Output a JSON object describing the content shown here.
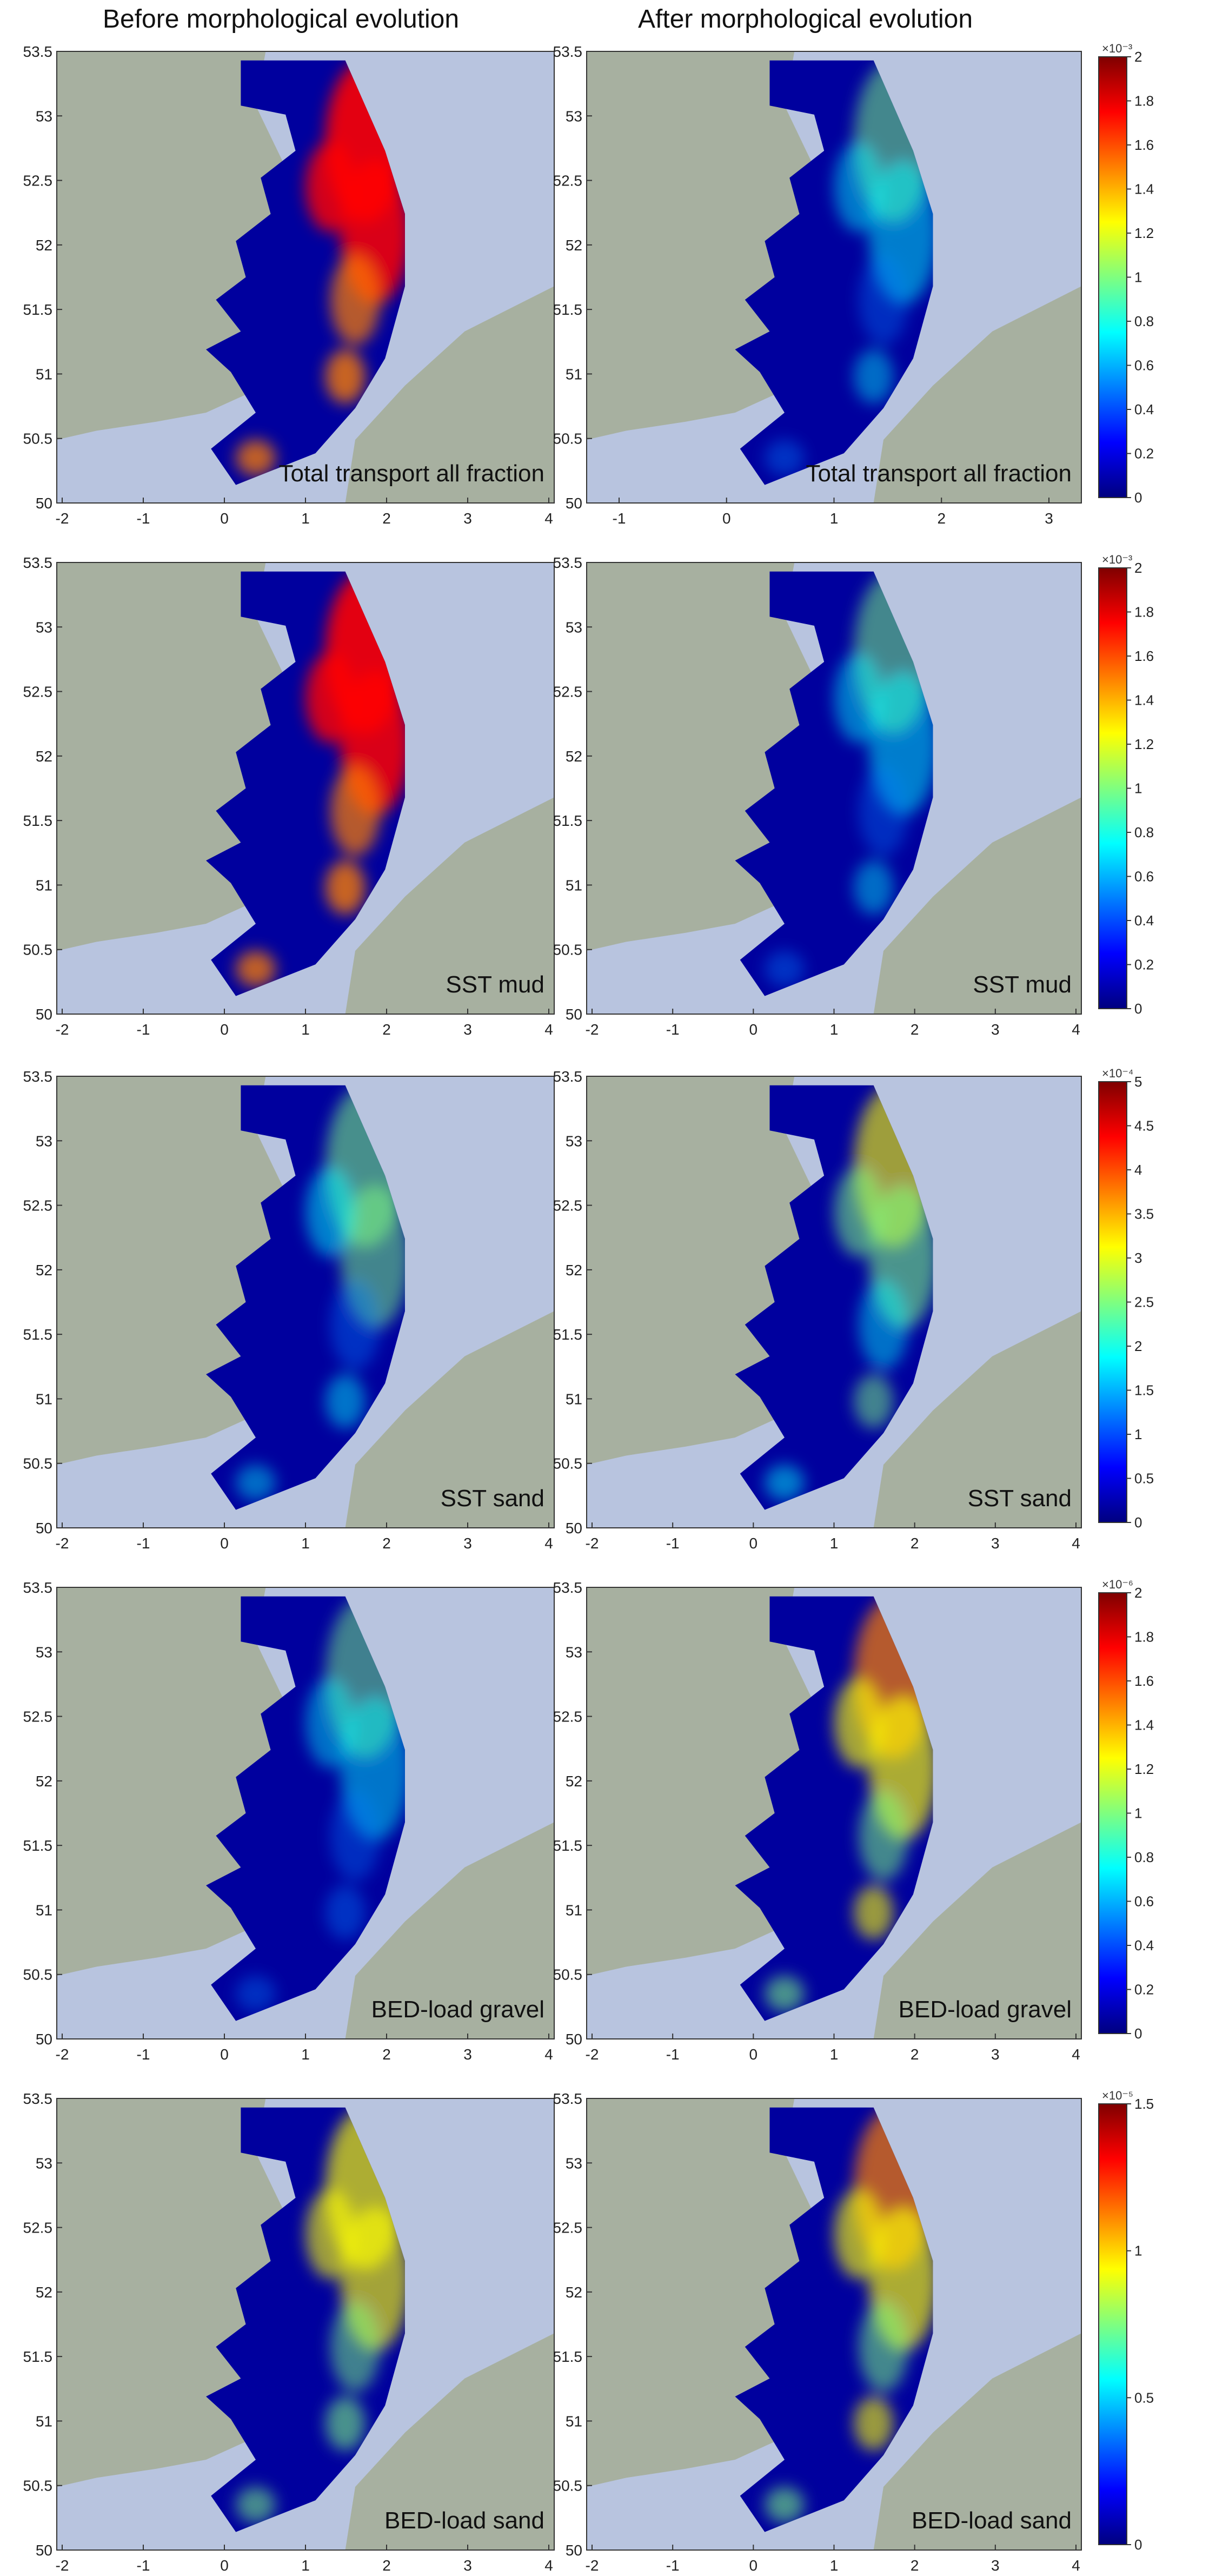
{
  "headers": {
    "before": "Before morphological evolution",
    "after": "After morphological evolution"
  },
  "chart_data": {
    "type": "heatmap",
    "x_ticks_left": [
      "-2",
      "-1",
      "0",
      "1",
      "2",
      "3",
      "4"
    ],
    "x_ticks_right_first_row": [
      "-1",
      "0",
      "1",
      "2",
      "3"
    ],
    "x_ticks_right": [
      "-2",
      "-1",
      "0",
      "1",
      "2",
      "3",
      "4"
    ],
    "y_ticks": [
      "50",
      "50.5",
      "51",
      "51.5",
      "52",
      "52.5",
      "53",
      "53.5"
    ],
    "colormap": [
      "#00007f",
      "#0000ff",
      "#007fff",
      "#00ffff",
      "#7fff7f",
      "#ffff00",
      "#ff7f00",
      "#ff0000",
      "#7f0000"
    ],
    "land_color": "#a7b0a0",
    "sea_color": "#b8c4df",
    "rows": [
      {
        "label_before": "Total transport all fraction",
        "label_after": "Total transport all fraction",
        "colorbar_exponent": "×10⁻³",
        "colorbar_ticks": [
          "0",
          "0.2",
          "0.4",
          "0.6",
          "0.8",
          "1",
          "1.2",
          "1.4",
          "1.6",
          "1.8",
          "2"
        ],
        "colorbar_range": [
          0,
          2
        ],
        "intensity_before": 0.9,
        "intensity_after": 0.3
      },
      {
        "label_before": "SST mud",
        "label_after": "SST mud",
        "colorbar_exponent": "×10⁻³",
        "colorbar_ticks": [
          "0",
          "0.2",
          "0.4",
          "0.6",
          "0.8",
          "1",
          "1.2",
          "1.4",
          "1.6",
          "1.8",
          "2"
        ],
        "colorbar_range": [
          0,
          2
        ],
        "intensity_before": 0.9,
        "intensity_after": 0.3
      },
      {
        "label_before": "SST sand",
        "label_after": "SST sand",
        "colorbar_exponent": "×10⁻⁴",
        "colorbar_ticks": [
          "0",
          "0.5",
          "1",
          "1.5",
          "2",
          "2.5",
          "3",
          "3.5",
          "4",
          "4.5",
          "5"
        ],
        "colorbar_range": [
          0,
          5
        ],
        "intensity_before": 0.35,
        "intensity_after": 0.45
      },
      {
        "label_before": "BED-load gravel",
        "label_after": "BED-load gravel",
        "colorbar_exponent": "×10⁻⁶",
        "colorbar_ticks": [
          "0",
          "0.2",
          "0.4",
          "0.6",
          "0.8",
          "1",
          "1.2",
          "1.4",
          "1.6",
          "1.8",
          "2"
        ],
        "colorbar_range": [
          0,
          2
        ],
        "intensity_before": 0.25,
        "intensity_after": 0.6
      },
      {
        "label_before": "BED-load sand",
        "label_after": "BED-load sand",
        "colorbar_exponent": "×10⁻⁵",
        "colorbar_ticks": [
          "0",
          "0.5",
          "1",
          "1.5"
        ],
        "colorbar_range": [
          0,
          1.5
        ],
        "intensity_before": 0.55,
        "intensity_after": 0.6
      }
    ]
  }
}
